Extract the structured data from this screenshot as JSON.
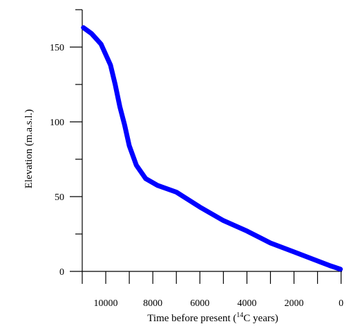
{
  "chart_data": {
    "type": "line",
    "title": "",
    "xlabel": {
      "prefix": "Time before present (",
      "superscript": "14",
      "suffix": "C years)"
    },
    "ylabel": "Elevation (m.a.s.l.)",
    "x_reversed": true,
    "xlim": [
      11000,
      -100
    ],
    "ylim": [
      0,
      175
    ],
    "x_ticks": [
      {
        "value": 10000,
        "label": "10000"
      },
      {
        "value": 8000,
        "label": "8000"
      },
      {
        "value": 6000,
        "label": "6000"
      },
      {
        "value": 4000,
        "label": "4000"
      },
      {
        "value": 2000,
        "label": "2000"
      },
      {
        "value": 0,
        "label": "0"
      }
    ],
    "x_minor_ticks": [
      11000,
      9000,
      7000,
      5000,
      3000,
      1000
    ],
    "y_ticks": [
      {
        "value": 0,
        "label": "0"
      },
      {
        "value": 50,
        "label": "50"
      },
      {
        "value": 100,
        "label": "100"
      },
      {
        "value": 150,
        "label": "150"
      }
    ],
    "y_minor_ticks": [
      25,
      75,
      125,
      175
    ],
    "series": [
      {
        "color": "#0000ff",
        "points": [
          {
            "x": 10950,
            "y": 163
          },
          {
            "x": 10600,
            "y": 159
          },
          {
            "x": 10200,
            "y": 152
          },
          {
            "x": 9800,
            "y": 138
          },
          {
            "x": 9600,
            "y": 125
          },
          {
            "x": 9400,
            "y": 110
          },
          {
            "x": 9200,
            "y": 98
          },
          {
            "x": 9000,
            "y": 84
          },
          {
            "x": 8700,
            "y": 71
          },
          {
            "x": 8300,
            "y": 62
          },
          {
            "x": 7800,
            "y": 57.5
          },
          {
            "x": 7000,
            "y": 53
          },
          {
            "x": 6000,
            "y": 43
          },
          {
            "x": 5000,
            "y": 34
          },
          {
            "x": 4000,
            "y": 27
          },
          {
            "x": 3000,
            "y": 19
          },
          {
            "x": 2000,
            "y": 13
          },
          {
            "x": 1000,
            "y": 7
          },
          {
            "x": 500,
            "y": 4
          },
          {
            "x": 30,
            "y": 1.5
          }
        ]
      }
    ],
    "grid": false,
    "legend": "none"
  }
}
